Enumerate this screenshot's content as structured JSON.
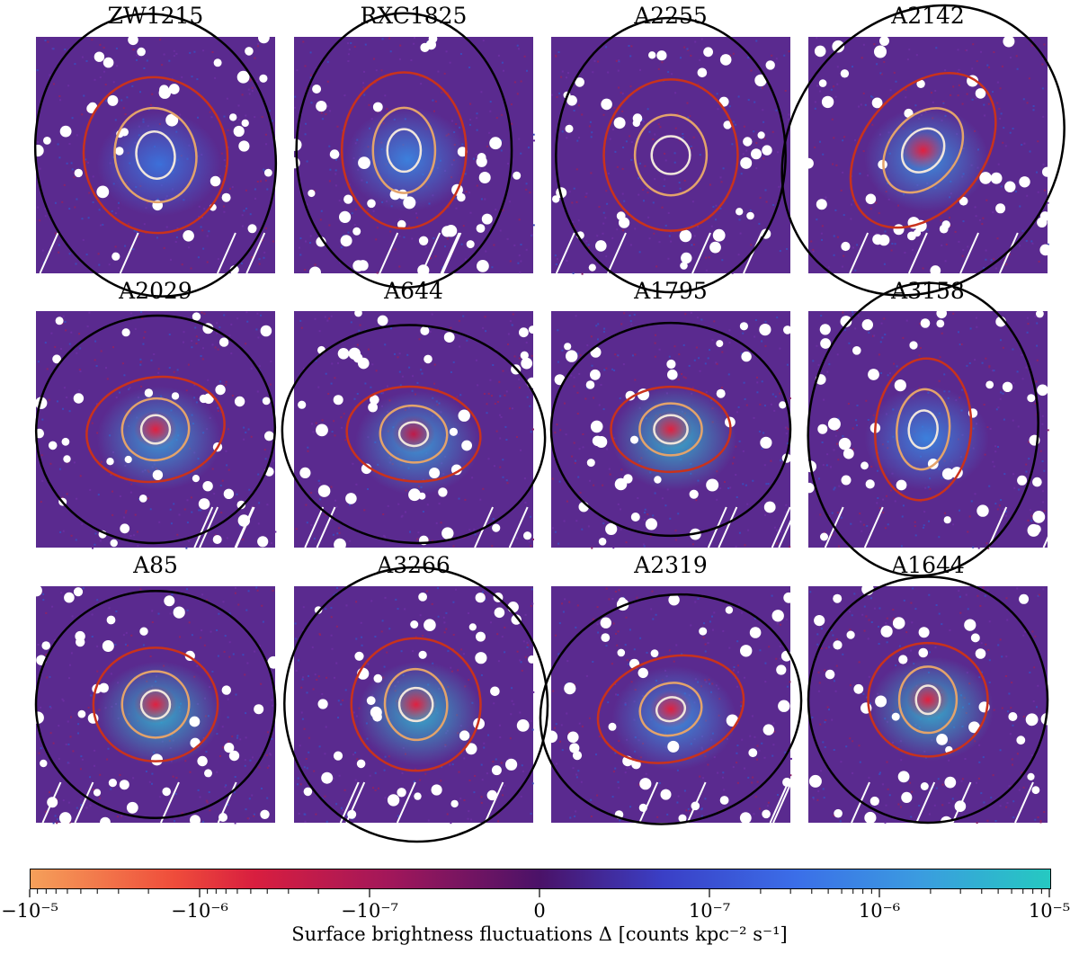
{
  "panels": [
    {
      "title": "ZW1215"
    },
    {
      "title": "RXC1825"
    },
    {
      "title": "A2255"
    },
    {
      "title": "A2142"
    },
    {
      "title": "A2029"
    },
    {
      "title": "A644"
    },
    {
      "title": "A1795"
    },
    {
      "title": "A3158"
    },
    {
      "title": "A85"
    },
    {
      "title": "A3266"
    },
    {
      "title": "A2319"
    },
    {
      "title": "A1644"
    }
  ],
  "colorbar": {
    "label": "Surface brightness fluctuations Δ [counts kpc⁻² s⁻¹]",
    "ticks": [
      "−10⁻⁵",
      "−10⁻⁶",
      "−10⁻⁷",
      "0",
      "10⁻⁷",
      "10⁻⁶",
      "10⁻⁵"
    ],
    "colors": {
      "negative_end": "#f5a05a",
      "negative_mid": "#d81e3f",
      "zero": "#4a1268",
      "positive_mid": "#3b6ee8",
      "positive_end": "#25c9c1"
    }
  },
  "ellipse_colors": [
    "#f0e6dc",
    "#e3a36b",
    "#c9321c",
    "#000000"
  ],
  "background_color": "#5a2a8f"
}
